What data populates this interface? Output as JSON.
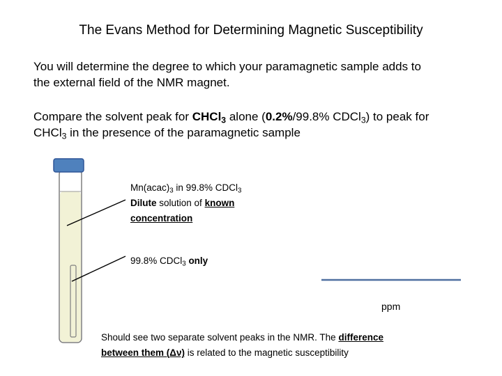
{
  "title": "The Evans Method for Determining Magnetic Susceptibility",
  "intro": {
    "line1": "You will determine the degree to which your paramagnetic sample adds to",
    "line2": "the external field of the NMR magnet."
  },
  "compare": {
    "part1": "Compare the solvent peak for ",
    "chcl": "CHCl",
    "sub3": "3",
    "part2": " alone (",
    "pct": "0.2%",
    "part3": "/99.8% CDCl",
    "part4": ") to peak for",
    "line2_chcl": "CHCl",
    "line2_rest": " in the presence of the paramagnetic sample"
  },
  "label_sample": {
    "line1_pre": "Mn(acac)",
    "line1_mid": " in 99.8% CDCl",
    "dilute": "Dilute",
    "solution_of": " solution of ",
    "known": "known",
    "concentration": "concentration"
  },
  "label_inner": {
    "pre": "99.8% CDCl",
    "only": " only"
  },
  "spectrum": {
    "axis_unit": "ppm"
  },
  "note": {
    "part1": "Should see two separate solvent peaks in the NMR. The ",
    "difference": "difference",
    "between": "between them (",
    "delta": "Δν)",
    "part2": " is related to the magnetic susceptibility"
  },
  "colors": {
    "cap": "#4F81BD",
    "cap_border": "#2F5597",
    "tube_fill": "#F2F2D6",
    "tube_border": "#7F7F7F",
    "spectrum_line": "#4F6FA0"
  }
}
